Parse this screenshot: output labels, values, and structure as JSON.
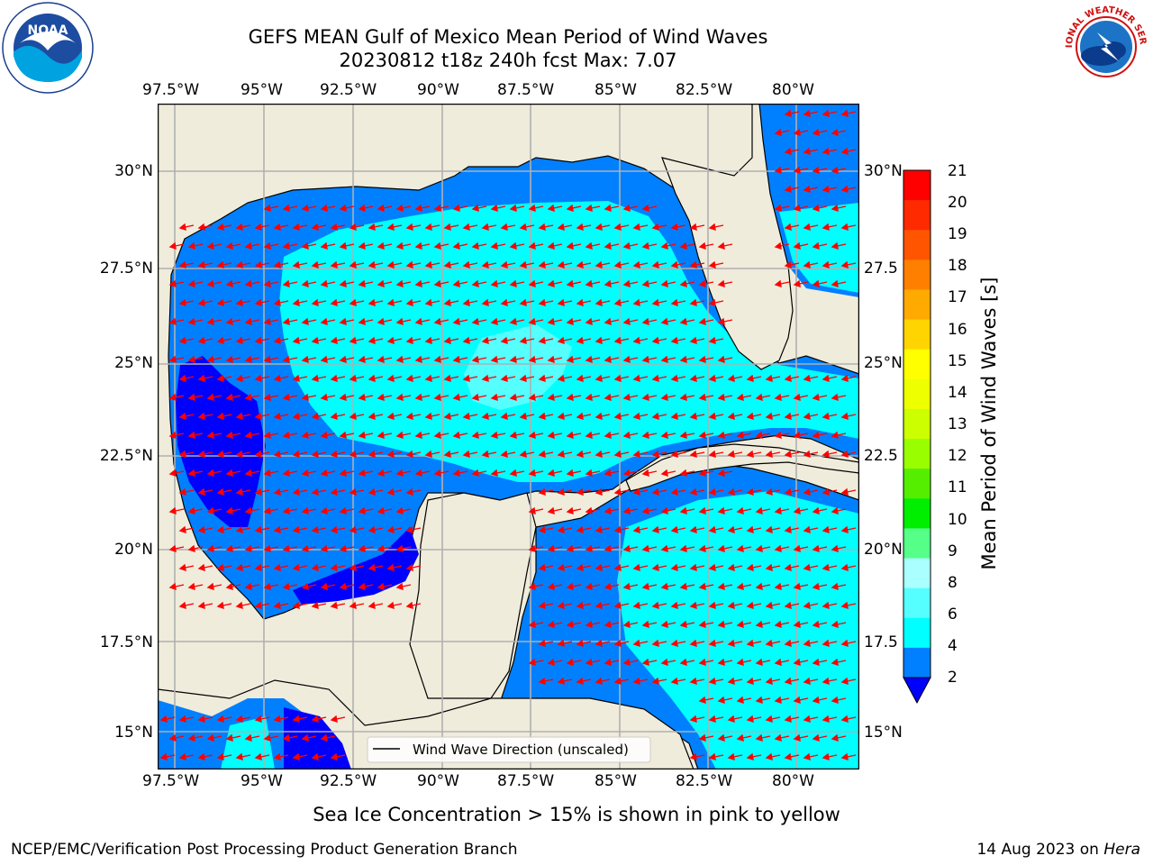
{
  "header": {
    "title_line1": "GEFS MEAN Gulf of Mexico Mean Period of Wind Waves",
    "title_line2": "20230812 t18z 240h fcst   Max: 7.07"
  },
  "logos": {
    "left": {
      "name": "noaa-logo",
      "text": "NOAA",
      "ring_text": "NATIONAL OCEANIC AND ATMOSPHERIC ADMINISTRATION · U.S. DEPARTMENT OF COMMERCE"
    },
    "right": {
      "name": "nws-logo",
      "ring_text": "NATIONAL WEATHER SERVICE"
    }
  },
  "map": {
    "lon_labels": [
      "97.5°W",
      "95°W",
      "92.5°W",
      "90°W",
      "87.5°W",
      "85°W",
      "82.5°W",
      "80°W"
    ],
    "lat_labels_left": [
      "30°N",
      "27.5°N",
      "25°N",
      "22.5°N",
      "20°N",
      "17.5°N",
      "15°N"
    ],
    "lat_labels_right": [
      "30°N",
      "27.5",
      "25°N",
      "22.5",
      "20°N",
      "17.5",
      "15°N"
    ],
    "extent": {
      "lon_min": -98.0,
      "lon_max": -78.2,
      "lat_min": 14.1,
      "lat_max": 31.7
    },
    "colors": {
      "land": "#efecdc",
      "ocean_2_4": "#0080ff",
      "ocean_4_6": "#00ffff",
      "ocean_6_8": "#55ffff",
      "ocean_lt2": "#0000ff",
      "arrow": "#ff0000",
      "grid": "#b0b0b0",
      "coast": "#000000"
    },
    "legend_label": "Wind Wave Direction (unscaled)",
    "wind_direction": "from east, arrows pointing west-southwest"
  },
  "colorbar": {
    "label": "Mean Period of Wind Waves [s]",
    "ticks": [
      "21",
      "20",
      "19",
      "18",
      "17",
      "16",
      "15",
      "14",
      "13",
      "12",
      "11",
      "10",
      "9",
      "8",
      "6",
      "4",
      "2"
    ],
    "colors_top_to_bottom": [
      "#ff0000",
      "#ff2a00",
      "#ff5400",
      "#ff8000",
      "#ffaa00",
      "#ffd400",
      "#ffff00",
      "#eeff00",
      "#ccff00",
      "#99ff00",
      "#55ee00",
      "#00ee00",
      "#55ff88",
      "#aaffff",
      "#55ffff",
      "#00ffff",
      "#0080ff"
    ],
    "extend_color": "#0000ff"
  },
  "footer": {
    "note": "Sea Ice Concentration > 15% is shown in pink to yellow",
    "left": "NCEP/EMC/Verification Post Processing Product Generation Branch",
    "right_prefix": "14 Aug 2023 on ",
    "right_machine": "Hera"
  }
}
